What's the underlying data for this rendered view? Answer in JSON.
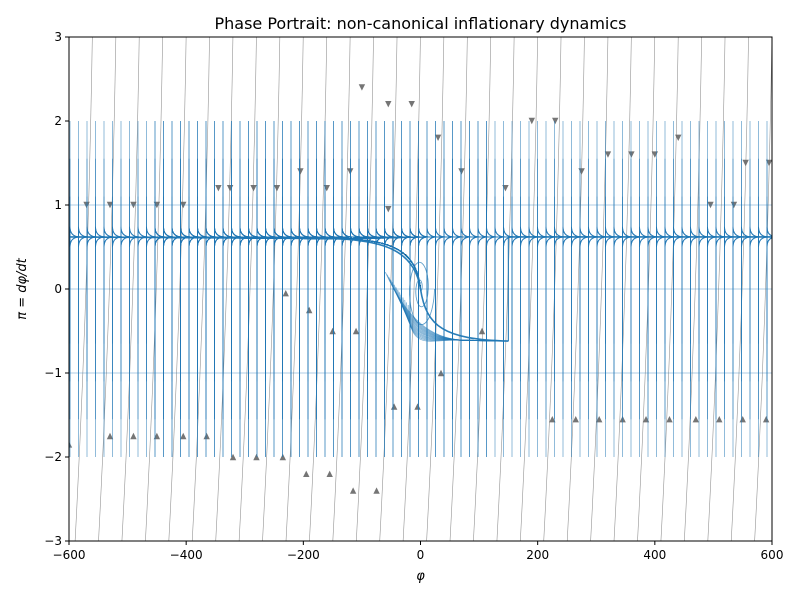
{
  "chart_data": {
    "type": "phase-portrait",
    "title": "Phase Portrait: non-canonical inflationary dynamics",
    "xlabel": "φ",
    "ylabel": "π = dφ/dt",
    "xlim": [
      -600,
      600
    ],
    "ylim": [
      -3,
      3
    ],
    "xticks": [
      -600,
      -400,
      -200,
      0,
      200,
      400,
      600
    ],
    "xtick_labels": [
      "−600",
      "−400",
      "−200",
      "0",
      "200",
      "400",
      "600"
    ],
    "yticks": [
      -3,
      -2,
      -1,
      0,
      1,
      2,
      3
    ],
    "ytick_labels": [
      "−3",
      "−2",
      "−1",
      "0",
      "1",
      "2",
      "3"
    ],
    "attractor_pi": 0.62,
    "colors": {
      "trajectory": "#1f77b4",
      "field": "#808080",
      "axes": "#000000"
    },
    "series": [
      {
        "name": "trajectories",
        "style": "blue lines"
      },
      {
        "name": "vector field streamlines",
        "style": "gray lines with arrows"
      }
    ]
  }
}
